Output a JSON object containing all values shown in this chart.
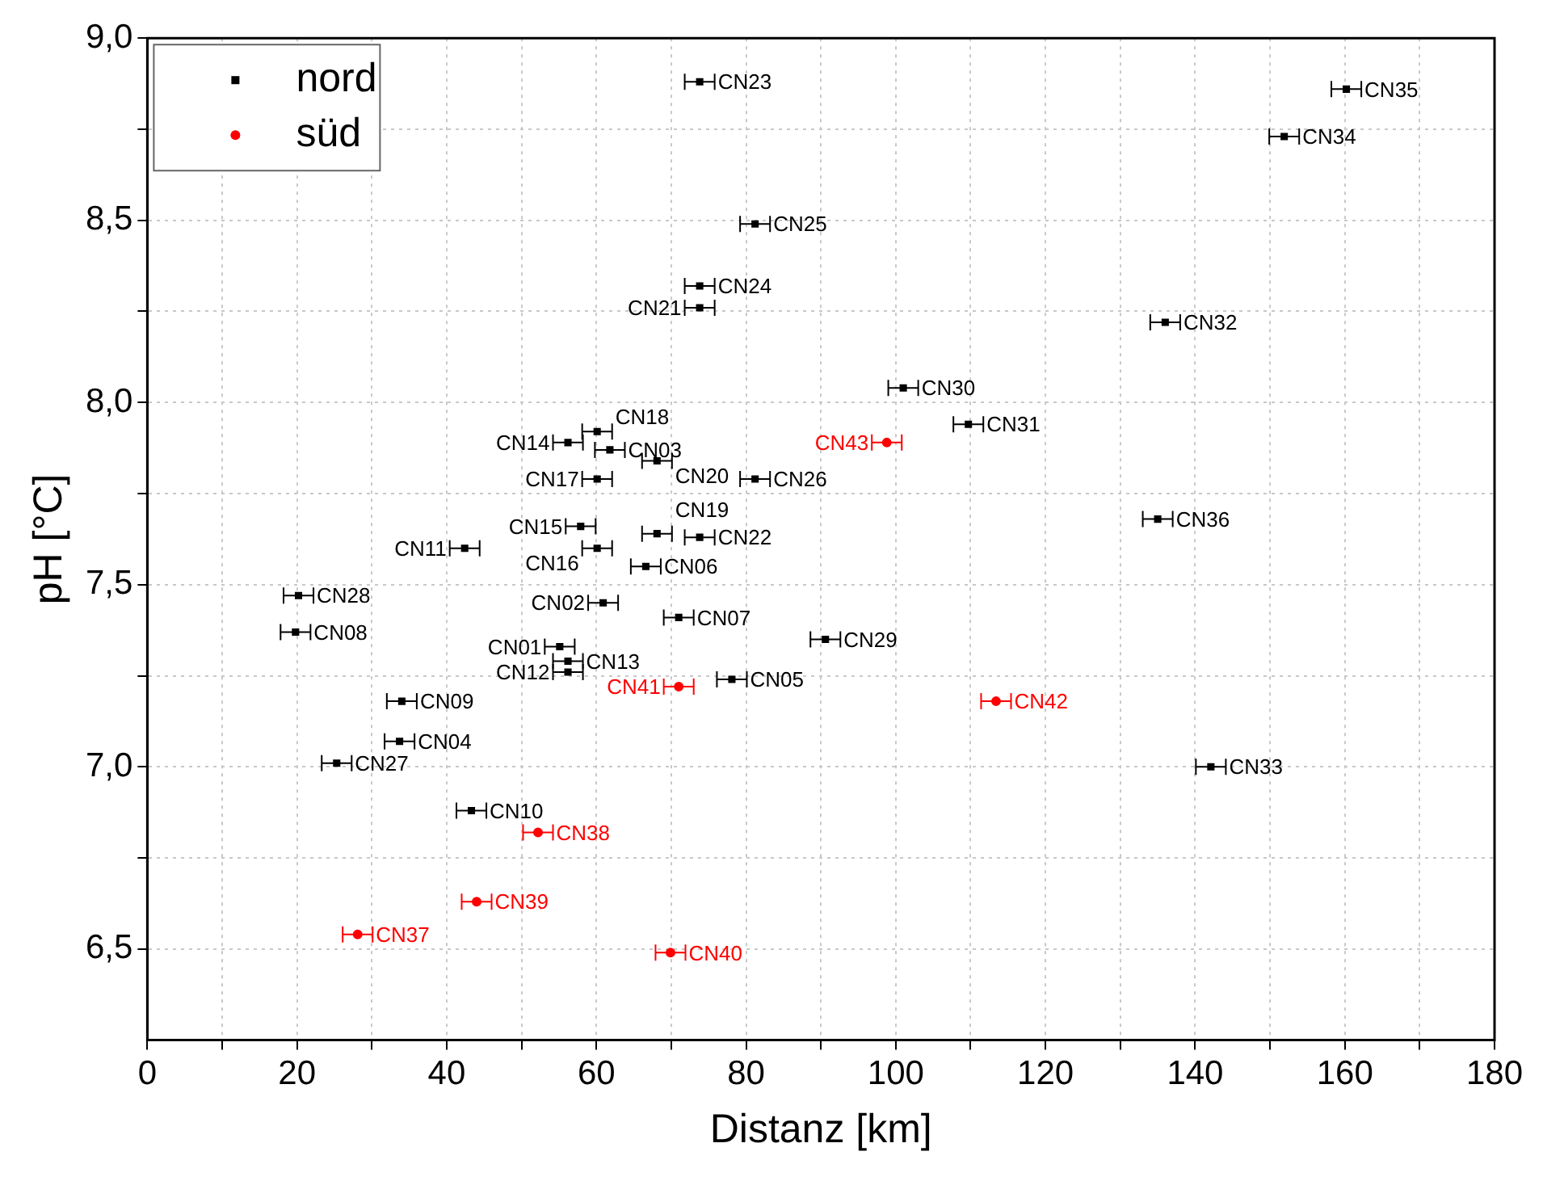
{
  "chart_data": {
    "type": "scatter",
    "xlabel": "Distanz [km]",
    "ylabel": "pH [°C]",
    "xlim": [
      0,
      180
    ],
    "ylim": [
      6.25,
      9.0
    ],
    "xticks": [
      0,
      {
        "value": 10,
        "label": null
      },
      20,
      {
        "value": 30,
        "label": null
      },
      40,
      {
        "value": 50,
        "label": null
      },
      60,
      {
        "value": 70,
        "label": null
      },
      80,
      {
        "value": 90,
        "label": null
      },
      100,
      {
        "value": 110,
        "label": null
      },
      120,
      {
        "value": 130,
        "label": null
      },
      140,
      {
        "value": 150,
        "label": null
      },
      160,
      {
        "value": 170,
        "label": null
      },
      180
    ],
    "yticks": [
      {
        "value": 6.5,
        "label": "6,5"
      },
      {
        "value": 6.75,
        "label": null
      },
      {
        "value": 7.0,
        "label": "7,0"
      },
      {
        "value": 7.25,
        "label": null
      },
      {
        "value": 7.5,
        "label": "7,5"
      },
      {
        "value": 7.75,
        "label": null
      },
      {
        "value": 8.0,
        "label": "8,0"
      },
      {
        "value": 8.25,
        "label": null
      },
      {
        "value": 8.5,
        "label": "8,5"
      },
      {
        "value": 8.75,
        "label": null
      },
      {
        "value": 9.0,
        "label": "9,0"
      }
    ],
    "grid": true,
    "legend": "top left",
    "series": [
      {
        "name": "nord",
        "color": "#000000",
        "marker": "square",
        "x": [
          73.8,
          160.2,
          151.9,
          81.2,
          73.8,
          73.8,
          136,
          101,
          109.7,
          60.1,
          56.2,
          61.8,
          68.1,
          60.1,
          81.2,
          57.9,
          68.1,
          73.8,
          60.1,
          42.4,
          66.6,
          135,
          20.2,
          60.9,
          71.0,
          19.8,
          90.6,
          55.1,
          56.2,
          56.2,
          78.1,
          34.0,
          33.7,
          25.3,
          142.1,
          43.3
        ],
        "values": [
          8.88,
          8.86,
          8.73,
          8.49,
          8.32,
          8.26,
          8.22,
          8.04,
          7.94,
          7.92,
          7.89,
          7.87,
          7.84,
          7.79,
          7.79,
          7.66,
          7.64,
          7.63,
          7.6,
          7.6,
          7.55,
          7.68,
          7.47,
          7.45,
          7.41,
          7.37,
          7.35,
          7.33,
          7.29,
          7.26,
          7.24,
          7.18,
          7.07,
          7.01,
          7.0,
          6.88
        ],
        "xerrors": [
          2,
          2,
          2,
          2,
          2,
          2,
          2,
          2,
          2,
          2,
          2,
          2,
          2,
          2,
          2,
          2,
          2,
          2,
          2,
          2,
          2,
          2,
          2,
          2,
          2,
          2,
          2,
          2,
          2,
          2,
          2,
          2,
          2,
          2,
          2,
          2
        ]
      },
      {
        "name": "süd",
        "color": "#ff0000",
        "marker": "circle",
        "x": [
          98.8,
          71.0,
          113.4,
          52.2,
          44.0,
          28.1,
          69.9
        ],
        "values": [
          7.89,
          7.22,
          7.18,
          6.82,
          6.63,
          6.54,
          6.49
        ],
        "xerrors": [
          2,
          2,
          2,
          2,
          2,
          2,
          2
        ]
      }
    ],
    "annotations": [
      {
        "text": "CN23",
        "x": 73.8,
        "y": 8.88
      },
      {
        "text": "CN35",
        "x": 160.2,
        "y": 8.86
      },
      {
        "text": "CN34",
        "x": 151.9,
        "y": 8.73
      },
      {
        "text": "CN25",
        "x": 81.2,
        "y": 8.49
      },
      {
        "text": "CN24",
        "x": 73.8,
        "y": 8.32
      },
      {
        "text": "CN21",
        "x": 73.8,
        "y": 8.26
      },
      {
        "text": "CN32",
        "x": 136,
        "y": 8.22
      },
      {
        "text": "CN30",
        "x": 101,
        "y": 8.04
      },
      {
        "text": "CN31",
        "x": 109.7,
        "y": 7.94
      },
      {
        "text": "CN18",
        "x": 60.1,
        "y": 7.92
      },
      {
        "text": "CN14",
        "x": 56.2,
        "y": 7.89
      },
      {
        "text": "CN03",
        "x": 61.8,
        "y": 7.87
      },
      {
        "text": "CN20",
        "x": 68.1,
        "y": 7.84
      },
      {
        "text": "CN17",
        "x": 60.1,
        "y": 7.79
      },
      {
        "text": "CN26",
        "x": 81.2,
        "y": 7.79
      },
      {
        "text": "CN15",
        "x": 57.9,
        "y": 7.66
      },
      {
        "text": "CN19",
        "x": 68.1,
        "y": 7.64
      },
      {
        "text": "CN22",
        "x": 73.8,
        "y": 7.63
      },
      {
        "text": "CN16",
        "x": 60.1,
        "y": 7.6
      },
      {
        "text": "CN11",
        "x": 42.4,
        "y": 7.6
      },
      {
        "text": "CN06",
        "x": 66.6,
        "y": 7.55
      },
      {
        "text": "CN36",
        "x": 135,
        "y": 7.68
      },
      {
        "text": "CN28",
        "x": 20.2,
        "y": 7.47
      },
      {
        "text": "CN02",
        "x": 60.9,
        "y": 7.45
      },
      {
        "text": "CN07",
        "x": 71.0,
        "y": 7.41
      },
      {
        "text": "CN08",
        "x": 19.8,
        "y": 7.37
      },
      {
        "text": "CN29",
        "x": 90.6,
        "y": 7.35
      },
      {
        "text": "CN01",
        "x": 55.1,
        "y": 7.33
      },
      {
        "text": "CN13",
        "x": 56.2,
        "y": 7.29
      },
      {
        "text": "CN12",
        "x": 56.2,
        "y": 7.26
      },
      {
        "text": "CN05",
        "x": 78.1,
        "y": 7.24
      },
      {
        "text": "CN09",
        "x": 34.0,
        "y": 7.18
      },
      {
        "text": "CN04",
        "x": 33.7,
        "y": 7.07
      },
      {
        "text": "CN27",
        "x": 25.3,
        "y": 7.01
      },
      {
        "text": "CN33",
        "x": 142.1,
        "y": 7.0
      },
      {
        "text": "CN10",
        "x": 43.3,
        "y": 6.88
      },
      {
        "text": "CN43",
        "x": 98.8,
        "y": 7.89
      },
      {
        "text": "CN41",
        "x": 71.0,
        "y": 7.22
      },
      {
        "text": "CN42",
        "x": 113.4,
        "y": 7.18
      },
      {
        "text": "CN38",
        "x": 52.2,
        "y": 6.82
      },
      {
        "text": "CN39",
        "x": 44.0,
        "y": 6.63
      },
      {
        "text": "CN37",
        "x": 28.1,
        "y": 6.54
      },
      {
        "text": "CN40",
        "x": 69.9,
        "y": 6.49
      }
    ]
  }
}
